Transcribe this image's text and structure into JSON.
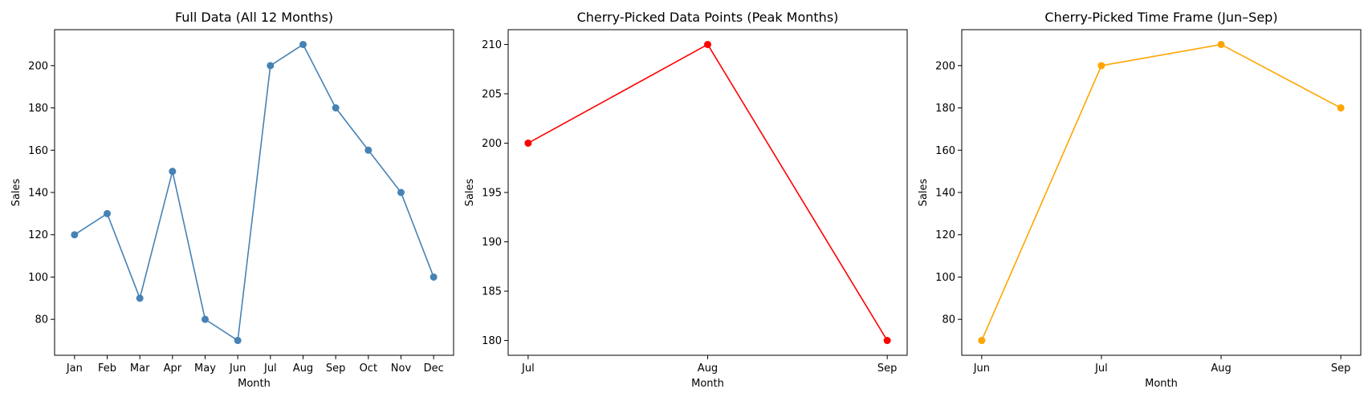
{
  "chart_data": [
    {
      "type": "line",
      "title": "Full Data (All 12 Months)",
      "xlabel": "Month",
      "ylabel": "Sales",
      "categories": [
        "Jan",
        "Feb",
        "Mar",
        "Apr",
        "May",
        "Jun",
        "Jul",
        "Aug",
        "Sep",
        "Oct",
        "Nov",
        "Dec"
      ],
      "series": [
        {
          "color": "#4682b4",
          "marker": "circle",
          "values": [
            120,
            130,
            90,
            150,
            80,
            70,
            200,
            210,
            180,
            160,
            140,
            100
          ]
        }
      ],
      "ylim": [
        63,
        217
      ],
      "yticks": [
        80,
        100,
        120,
        140,
        160,
        180,
        200
      ],
      "grid": false
    },
    {
      "type": "line",
      "title": "Cherry-Picked Data Points (Peak Months)",
      "xlabel": "Month",
      "ylabel": "Sales",
      "categories": [
        "Jul",
        "Aug",
        "Sep"
      ],
      "series": [
        {
          "color": "#ff0000",
          "marker": "circle",
          "values": [
            200,
            210,
            180
          ]
        }
      ],
      "ylim": [
        178.5,
        211.5
      ],
      "yticks": [
        180,
        185,
        190,
        195,
        200,
        205,
        210
      ],
      "grid": false
    },
    {
      "type": "line",
      "title": "Cherry-Picked Time Frame (Jun–Sep)",
      "xlabel": "Month",
      "ylabel": "Sales",
      "categories": [
        "Jun",
        "Jul",
        "Aug",
        "Sep"
      ],
      "series": [
        {
          "color": "#ffa500",
          "marker": "circle",
          "values": [
            70,
            200,
            210,
            180
          ]
        }
      ],
      "ylim": [
        63,
        217
      ],
      "yticks": [
        80,
        100,
        120,
        140,
        160,
        180,
        200
      ],
      "grid": false
    }
  ]
}
